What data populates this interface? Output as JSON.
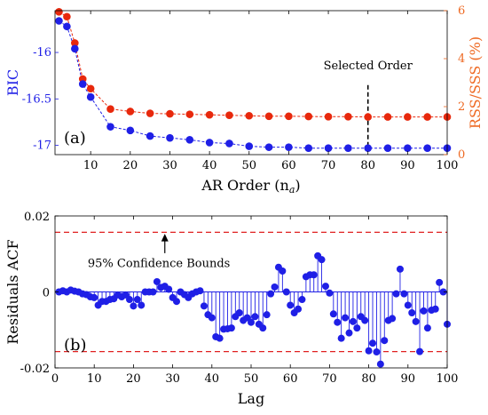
{
  "colors": {
    "bic": "#1f1fe6",
    "rss": "#e8280c",
    "rss_axis": "#ee6a24",
    "bounds": "#e02020",
    "axis": "#000000",
    "stem": "#1f1fe6"
  },
  "chart_data": [
    {
      "type": "line",
      "panel_label": "(a)",
      "xlabel": "AR Order (n",
      "xlabel_sub": "a",
      "xlabel_close": ")",
      "ylabel_left": "BIC",
      "ylabel_right": "RSS/SSS (%)",
      "xlim": [
        1,
        100
      ],
      "ylim_left": [
        -17.1,
        -15.55
      ],
      "ylim_right": [
        0,
        6
      ],
      "xticks": [
        10,
        20,
        30,
        40,
        50,
        60,
        70,
        80,
        90,
        100
      ],
      "yticks_left": [
        -17,
        -16.5,
        -16
      ],
      "yticks_left_labels": [
        "-17",
        "-16.5",
        "-16"
      ],
      "yticks_right": [
        0,
        2,
        4,
        6
      ],
      "annotation": "Selected Order",
      "selected_x": 80,
      "series": [
        {
          "axis": "left",
          "x": [
            2,
            4,
            6,
            8,
            10,
            15,
            20,
            25,
            30,
            35,
            40,
            45,
            50,
            55,
            60,
            65,
            70,
            75,
            80,
            85,
            90,
            95,
            100
          ],
          "y": [
            -15.66,
            -15.72,
            -15.96,
            -16.34,
            -16.48,
            -16.8,
            -16.84,
            -16.9,
            -16.92,
            -16.94,
            -16.97,
            -16.98,
            -17.01,
            -17.02,
            -17.02,
            -17.03,
            -17.03,
            -17.03,
            -17.03,
            -17.03,
            -17.03,
            -17.03,
            -17.03
          ]
        },
        {
          "axis": "right",
          "x": [
            2,
            4,
            6,
            8,
            10,
            15,
            20,
            25,
            30,
            35,
            40,
            45,
            50,
            55,
            60,
            65,
            70,
            75,
            80,
            85,
            90,
            95,
            100
          ],
          "y": [
            5.95,
            5.75,
            4.65,
            3.15,
            2.75,
            1.9,
            1.8,
            1.72,
            1.7,
            1.68,
            1.66,
            1.64,
            1.62,
            1.6,
            1.6,
            1.59,
            1.58,
            1.58,
            1.57,
            1.57,
            1.57,
            1.57,
            1.57
          ]
        }
      ]
    },
    {
      "type": "stem",
      "panel_label": "(b)",
      "xlabel": "Lag",
      "ylabel": "Residuals ACF",
      "xlim": [
        0,
        100
      ],
      "ylim": [
        -0.02,
        0.02
      ],
      "xticks": [
        0,
        10,
        20,
        30,
        40,
        50,
        60,
        70,
        80,
        90,
        100
      ],
      "yticks": [
        -0.02,
        0,
        0.02
      ],
      "yticks_labels": [
        "-0.02",
        "0",
        "0.02"
      ],
      "confidence_bound": 0.0157,
      "annotation": "95% Confidence Bounds",
      "values": [
        0.0,
        0.0003,
        0.0,
        0.0005,
        0.0002,
        0.0,
        -0.0005,
        -0.0007,
        -0.0013,
        -0.0015,
        -0.0035,
        -0.0025,
        -0.0025,
        -0.002,
        -0.0018,
        -0.0008,
        -0.0013,
        -0.0008,
        -0.002,
        -0.0037,
        -0.002,
        -0.0035,
        0.0,
        0.0,
        0.0,
        0.0027,
        0.0012,
        0.0015,
        0.0007,
        -0.0015,
        -0.0025,
        0.0,
        -0.0007,
        -0.0015,
        -0.0005,
        0.0,
        0.0003,
        -0.0037,
        -0.006,
        -0.0068,
        -0.0118,
        -0.0122,
        -0.0098,
        -0.0097,
        -0.0095,
        -0.0065,
        -0.0055,
        -0.0075,
        -0.0068,
        -0.008,
        -0.0065,
        -0.0085,
        -0.0095,
        -0.006,
        -0.0005,
        0.0013,
        0.0065,
        0.0055,
        0.0,
        -0.0035,
        -0.0055,
        -0.0045,
        -0.002,
        0.004,
        0.0045,
        0.0045,
        0.0095,
        0.0085,
        0.0015,
        -0.0003,
        -0.0058,
        -0.008,
        -0.0122,
        -0.0068,
        -0.0108,
        -0.0078,
        -0.0095,
        -0.0065,
        -0.0075,
        -0.0155,
        -0.0135,
        -0.0158,
        -0.019,
        -0.0128,
        -0.0075,
        -0.007,
        -0.0005,
        0.006,
        -0.0005,
        -0.0035,
        -0.0055,
        -0.0078,
        -0.0157,
        -0.005,
        -0.0095,
        -0.0048,
        -0.0045,
        0.0025,
        0.0,
        -0.0085
      ]
    }
  ]
}
